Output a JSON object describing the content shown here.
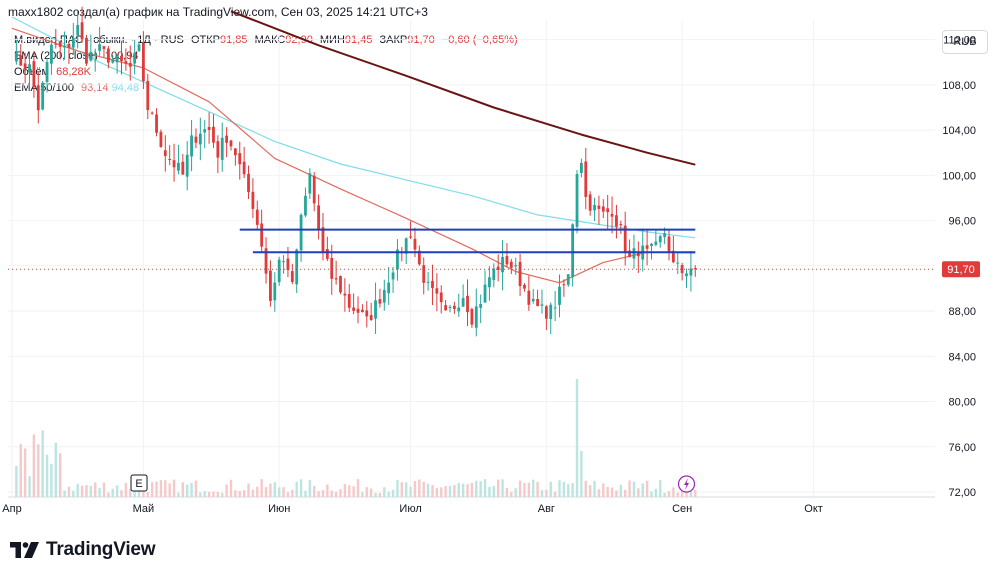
{
  "header": {
    "text": "maxx1802 создал(а) график на TradingView.com, Сен 03, 2025 14:21 UTC+3"
  },
  "legend": {
    "symbol": "М.видео ПАО - обыкн. · 1Д · RUS",
    "open_label": "ОТКР",
    "open_value": "91,85",
    "high_label": "МАКС",
    "high_value": "92,90",
    "low_label": "МИН",
    "low_value": "91,45",
    "close_label": "ЗАКР",
    "close_value": "91,70",
    "change_value": "−0,60 (−0,65%)",
    "ema200_label": "EMA (200, close)",
    "ema200_value": "100,94",
    "volume_label": "Объём",
    "volume_value": "68,28K",
    "ema50_100_label": "EMA 50/100",
    "ema50_value": "93,14",
    "ema100_value": "94,48"
  },
  "currency_button": "RUB",
  "price_tag": "91,70",
  "logo_text": "TradingView",
  "event_marker": "E",
  "colors": {
    "up": "#26a69a",
    "down": "#e03a3a",
    "ema200": "#6b1414",
    "ema50": "#e26a5f",
    "ema100": "#7fdde9",
    "level": "#1f3fbf",
    "vol_up": "#bde5e0",
    "vol_down": "#f5c9c9"
  },
  "chart_data": {
    "type": "candlestick",
    "ylim": [
      72,
      114
    ],
    "y_ticks": [
      "112,00",
      "108,00",
      "104,00",
      "100,00",
      "96,00",
      "92,00",
      "88,00",
      "84,00",
      "80,00",
      "76,00",
      "72,00"
    ],
    "x_months": [
      {
        "label": "Апр",
        "day": 0
      },
      {
        "label": "Май",
        "day": 30
      },
      {
        "label": "Июн",
        "day": 61
      },
      {
        "label": "Июл",
        "day": 91
      },
      {
        "label": "Авг",
        "day": 122
      },
      {
        "label": "Сен",
        "day": 153
      },
      {
        "label": "Окт",
        "day": 183
      }
    ],
    "last_day": 156,
    "candle_keypoints": [
      [
        0,
        110.5
      ],
      [
        4,
        109.5
      ],
      [
        6,
        106
      ],
      [
        9,
        111.5
      ],
      [
        12,
        111
      ],
      [
        15,
        113
      ],
      [
        17,
        110.5
      ],
      [
        20,
        111
      ],
      [
        24,
        110
      ],
      [
        27,
        109.5
      ],
      [
        29,
        111
      ],
      [
        31,
        106
      ],
      [
        33,
        104
      ],
      [
        35,
        102
      ],
      [
        37,
        101
      ],
      [
        39,
        100
      ],
      [
        41,
        103
      ],
      [
        43,
        104
      ],
      [
        45,
        104
      ],
      [
        47,
        102
      ],
      [
        49,
        103.5
      ],
      [
        51,
        102
      ],
      [
        53,
        99.5
      ],
      [
        55,
        97.5
      ],
      [
        57,
        94
      ],
      [
        58,
        91.5
      ],
      [
        59,
        89
      ],
      [
        61,
        92.5
      ],
      [
        63,
        92
      ],
      [
        64,
        90
      ],
      [
        65,
        93.5
      ],
      [
        66,
        96
      ],
      [
        68,
        100
      ],
      [
        69,
        97.5
      ],
      [
        71,
        93
      ],
      [
        73,
        91
      ],
      [
        75,
        90
      ],
      [
        77,
        88.5
      ],
      [
        79,
        88
      ],
      [
        81,
        87
      ],
      [
        83,
        88.5
      ],
      [
        85,
        90
      ],
      [
        87,
        92
      ],
      [
        89,
        93.5
      ],
      [
        91,
        95
      ],
      [
        93,
        92
      ],
      [
        95,
        90
      ],
      [
        97,
        89
      ],
      [
        99,
        87.5
      ],
      [
        101,
        88.5
      ],
      [
        103,
        89.5
      ],
      [
        105,
        87.5
      ],
      [
        107,
        89
      ],
      [
        109,
        91
      ],
      [
        111,
        92
      ],
      [
        113,
        92.5
      ],
      [
        115,
        91.5
      ],
      [
        117,
        90
      ],
      [
        119,
        88.5
      ],
      [
        121,
        88
      ],
      [
        123,
        88
      ],
      [
        125,
        89.5
      ],
      [
        127,
        91
      ],
      [
        128,
        96
      ],
      [
        129,
        100.5
      ],
      [
        130,
        101.5
      ],
      [
        131,
        98
      ],
      [
        133,
        97
      ],
      [
        135,
        96.5
      ],
      [
        137,
        97
      ],
      [
        139,
        95
      ],
      [
        141,
        92.5
      ],
      [
        143,
        93.5
      ],
      [
        145,
        93
      ],
      [
        147,
        93.5
      ],
      [
        149,
        95
      ],
      [
        151,
        92
      ],
      [
        153,
        91.5
      ],
      [
        155,
        91.9
      ],
      [
        156,
        91.7
      ]
    ],
    "ema200": {
      "name": "EMA (200, close)",
      "x": [
        50,
        70,
        90,
        110,
        130,
        145,
        156
      ],
      "y": [
        114.5,
        111.5,
        108.8,
        106,
        103.6,
        102,
        100.94
      ]
    },
    "ema50": {
      "name": "EMA 50",
      "x": [
        0,
        15,
        30,
        45,
        60,
        75,
        90,
        105,
        115,
        125,
        135,
        145,
        156
      ],
      "y": [
        113,
        111,
        109.5,
        106.5,
        101.5,
        98.8,
        96.2,
        93.5,
        91.5,
        90.5,
        92.3,
        93.2,
        93.14
      ]
    },
    "ema100": {
      "name": "EMA 100",
      "x": [
        0,
        20,
        40,
        60,
        75,
        90,
        105,
        120,
        135,
        145,
        156
      ],
      "y": [
        114,
        110,
        106.5,
        103,
        101,
        99.6,
        98.2,
        96.5,
        95.6,
        95.0,
        94.48
      ]
    },
    "levels": [
      {
        "from": 52,
        "to": 156,
        "y": 95.2
      },
      {
        "from": 55,
        "to": 156,
        "y": 93.2
      }
    ],
    "volume_spike_day": 129
  }
}
